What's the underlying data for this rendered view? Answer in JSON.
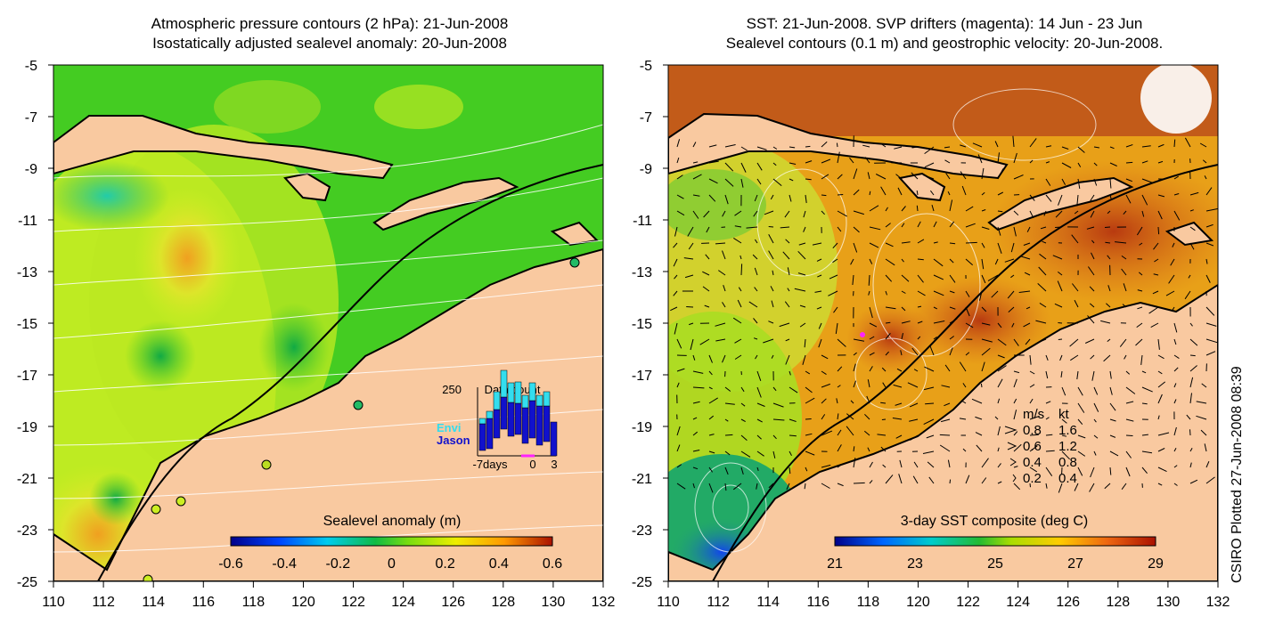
{
  "left_panel": {
    "title_line1": "Atmospheric pressure contours (2 hPa): 21-Jun-2008",
    "title_line2": "Isostatically adjusted sealevel anomaly: 20-Jun-2008",
    "colorbar_label": "Sealevel anomaly (m)",
    "colorbar_ticks": [
      "-0.6",
      "-0.4",
      "-0.2",
      "0",
      "0.2",
      "0.4",
      "0.6"
    ],
    "inset": {
      "y_max_label": "250",
      "title": "Data count",
      "series_labels": [
        "Envi",
        "Jason"
      ],
      "x_labels": [
        "-7days",
        "0",
        "3"
      ],
      "colors": {
        "envi": "#33ddee",
        "jason": "#1111cc"
      }
    }
  },
  "right_panel": {
    "title_line1": "SST: 21-Jun-2008. SVP drifters (magenta): 14 Jun - 23 Jun",
    "title_line2": "Sealevel contours (0.1 m) and geostrophic velocity: 20-Jun-2008.",
    "colorbar_label": "3-day SST composite (deg C)",
    "colorbar_ticks": [
      "21",
      "23",
      "25",
      "27",
      "29"
    ],
    "speed_legend": {
      "header_ms": "m/s",
      "header_kt": "kt",
      "rows": [
        {
          "ms": "0.8",
          "kt": "1.6"
        },
        {
          "ms": "0.6",
          "kt": "1.2"
        },
        {
          "ms": "0.4",
          "kt": "0.8"
        },
        {
          "ms": "0.2",
          "kt": "0.4"
        }
      ]
    }
  },
  "axes": {
    "y_ticks": [
      "-5",
      "-7",
      "-9",
      "-11",
      "-13",
      "-15",
      "-17",
      "-19",
      "-21",
      "-23",
      "-25"
    ],
    "x_ticks": [
      "110",
      "112",
      "114",
      "116",
      "118",
      "120",
      "122",
      "124",
      "126",
      "128",
      "130",
      "132"
    ],
    "lon_range": [
      110,
      132
    ],
    "lat_range": [
      -25,
      -5
    ]
  },
  "credit": "CSIRO Plotted 27-Jun-2008 08:39",
  "colors": {
    "land": "#f9c9a0",
    "ocean_green": "#44cc22",
    "ocean_yellow": "#ccee22",
    "sst_orange": "#d86a1a"
  }
}
